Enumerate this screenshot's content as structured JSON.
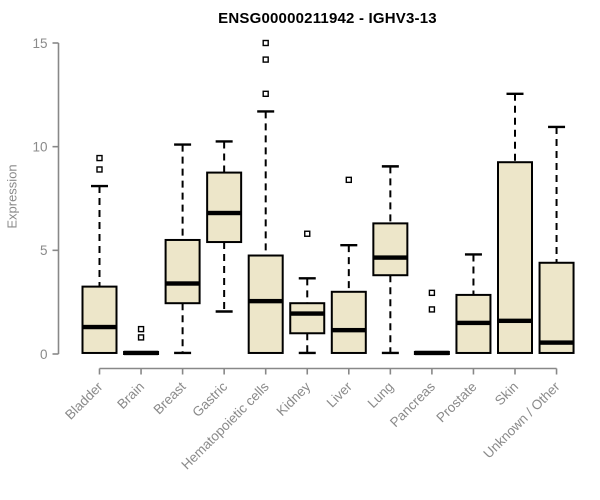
{
  "chart_data": {
    "type": "boxplot",
    "title": "ENSG00000211942 - IGHV3-13",
    "ylabel": "Expression",
    "xlabel": "",
    "yticks": [
      0,
      5,
      10,
      15
    ],
    "ylim": [
      -0.7,
      15.6
    ],
    "grid": false,
    "legend": "none",
    "categories": [
      "Bladder",
      "Brain",
      "Breast",
      "Gastric",
      "Hematopoietic cells",
      "Kidney",
      "Liver",
      "Lung",
      "Pancreas",
      "Prostate",
      "Skin",
      "Unknown / Other"
    ],
    "boxes": [
      {
        "category": "Bladder",
        "whisker_low": 0.05,
        "q1": 0.05,
        "median": 1.3,
        "q3": 3.25,
        "whisker_high": 8.1,
        "outliers": [
          8.9,
          9.45
        ]
      },
      {
        "category": "Brain",
        "whisker_low": 0.0,
        "q1": 0.0,
        "median": 0.05,
        "q3": 0.1,
        "whisker_high": 0.1,
        "outliers": [
          0.8,
          1.2
        ]
      },
      {
        "category": "Breast",
        "whisker_low": 0.05,
        "q1": 2.45,
        "median": 3.4,
        "q3": 5.5,
        "whisker_high": 10.1,
        "outliers": []
      },
      {
        "category": "Gastric",
        "whisker_low": 2.05,
        "q1": 5.4,
        "median": 6.8,
        "q3": 8.75,
        "whisker_high": 10.25,
        "outliers": []
      },
      {
        "category": "Hematopoietic cells",
        "whisker_low": 0.05,
        "q1": 0.05,
        "median": 2.55,
        "q3": 4.75,
        "whisker_high": 11.7,
        "outliers": [
          12.55,
          14.2,
          15.0
        ]
      },
      {
        "category": "Kidney",
        "whisker_low": 0.05,
        "q1": 1.0,
        "median": 1.95,
        "q3": 2.45,
        "whisker_high": 3.65,
        "outliers": [
          5.8
        ]
      },
      {
        "category": "Liver",
        "whisker_low": 0.05,
        "q1": 0.05,
        "median": 1.15,
        "q3": 3.0,
        "whisker_high": 5.25,
        "outliers": [
          8.4
        ]
      },
      {
        "category": "Lung",
        "whisker_low": 0.05,
        "q1": 3.8,
        "median": 4.65,
        "q3": 6.3,
        "whisker_high": 9.05,
        "outliers": []
      },
      {
        "category": "Pancreas",
        "whisker_low": 0.0,
        "q1": 0.0,
        "median": 0.05,
        "q3": 0.1,
        "whisker_high": 0.1,
        "outliers": [
          2.15,
          2.95
        ]
      },
      {
        "category": "Prostate",
        "whisker_low": 0.05,
        "q1": 0.05,
        "median": 1.5,
        "q3": 2.85,
        "whisker_high": 4.8,
        "outliers": []
      },
      {
        "category": "Skin",
        "whisker_low": 0.05,
        "q1": 0.05,
        "median": 1.6,
        "q3": 9.25,
        "whisker_high": 12.55,
        "outliers": []
      },
      {
        "category": "Unknown / Other",
        "whisker_low": 0.05,
        "q1": 0.05,
        "median": 0.55,
        "q3": 4.4,
        "whisker_high": 10.95,
        "outliers": []
      }
    ],
    "colors": {
      "box_fill": "#ede6c9",
      "box_border": "#000000",
      "median": "#000000",
      "whisker": "#000000",
      "axis": "#888888",
      "tick_label": "#8a8a8a",
      "title": "#000000",
      "background": "#ffffff"
    }
  }
}
